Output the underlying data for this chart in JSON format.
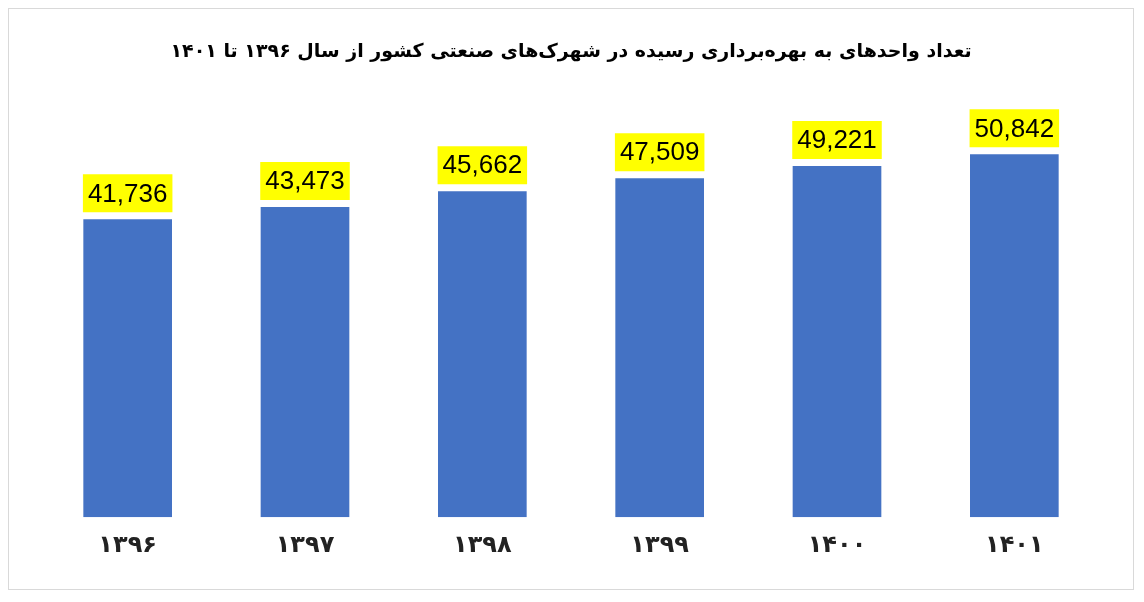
{
  "chart_data": {
    "type": "bar",
    "title": "تعداد واحدهای به بهره‌برداری رسیده در شهرک‌های صنعتی کشور از سال ۱۳۹۶ تا ۱۴۰۱",
    "categories": [
      "۱۳۹۶",
      "۱۳۹۷",
      "۱۳۹۸",
      "۱۳۹۹",
      "۱۴۰۰",
      "۱۴۰۱"
    ],
    "values": [
      41736,
      43473,
      45662,
      47509,
      49221,
      50842
    ],
    "value_labels": [
      "41,736",
      "43,473",
      "45,662",
      "47,509",
      "49,221",
      "50,842"
    ],
    "color": "#4472c4",
    "grid": false,
    "legend": false
  }
}
